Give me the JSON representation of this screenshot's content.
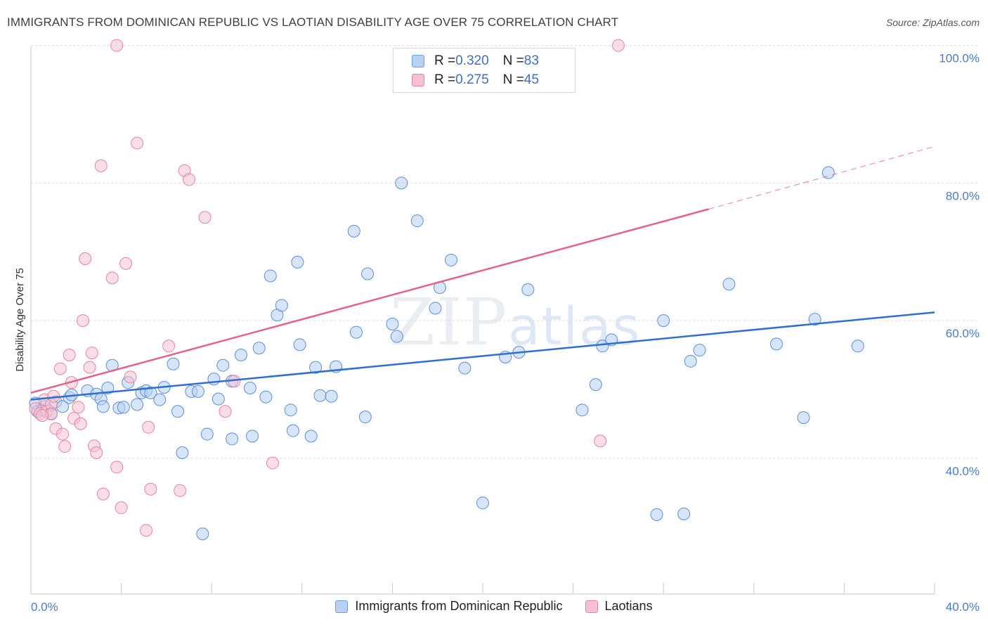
{
  "title": "IMMIGRANTS FROM DOMINICAN REPUBLIC VS LAOTIAN DISABILITY AGE OVER 75 CORRELATION CHART",
  "source": "Source: ZipAtlas.com",
  "watermark": {
    "zip": "ZIP",
    "atlas": "atlas"
  },
  "legend": {
    "rows": [
      {
        "r_label": "R = ",
        "r_value": "0.320",
        "n_label": "N = ",
        "n_value": "83",
        "color": "#6f9de0",
        "fill": "#b7d0f3"
      },
      {
        "r_label": "R = ",
        "r_value": "0.275",
        "n_label": "N = ",
        "n_value": "45",
        "color": "#e8839f",
        "fill": "#f6c2d2"
      }
    ]
  },
  "chart_data": {
    "type": "scatter",
    "title": "IMMIGRANTS FROM DOMINICAN REPUBLIC VS LAOTIAN DISABILITY AGE OVER 75 CORRELATION CHART",
    "xlabel": "",
    "ylabel": "Disability Age Over 75",
    "xlim": [
      0,
      40
    ],
    "ylim": [
      22,
      102
    ],
    "x_tick_labels": [
      "0.0%",
      "40.0%"
    ],
    "y_ticks": [
      40,
      60,
      80,
      100
    ],
    "y_tick_labels": [
      "40.0%",
      "60.0%",
      "80.0%",
      "100.0%"
    ],
    "grid": true,
    "legend_position": "top-center",
    "series": [
      {
        "name": "Immigrants from Dominican Republic",
        "color": "#5b8fdc",
        "fill": "#b7d0f3",
        "trend": {
          "x": [
            0,
            40
          ],
          "y": [
            48.5,
            61.2
          ],
          "color": "#2f6fcf"
        },
        "points": [
          [
            0.2,
            48.0
          ],
          [
            0.3,
            46.8
          ],
          [
            0.5,
            47.0
          ],
          [
            0.6,
            47.5
          ],
          [
            0.9,
            46.5
          ],
          [
            1.1,
            48.2
          ],
          [
            1.4,
            47.5
          ],
          [
            1.7,
            48.8
          ],
          [
            1.8,
            49.2
          ],
          [
            2.5,
            49.8
          ],
          [
            2.9,
            49.3
          ],
          [
            3.1,
            48.6
          ],
          [
            3.2,
            47.5
          ],
          [
            3.4,
            50.2
          ],
          [
            3.6,
            53.5
          ],
          [
            3.9,
            47.3
          ],
          [
            4.1,
            47.4
          ],
          [
            4.3,
            51.0
          ],
          [
            4.7,
            47.8
          ],
          [
            4.9,
            49.5
          ],
          [
            5.1,
            49.8
          ],
          [
            5.3,
            49.5
          ],
          [
            5.7,
            48.5
          ],
          [
            5.9,
            50.3
          ],
          [
            6.3,
            53.7
          ],
          [
            6.5,
            46.8
          ],
          [
            6.7,
            40.8
          ],
          [
            7.1,
            49.7
          ],
          [
            7.4,
            49.7
          ],
          [
            7.6,
            29.0
          ],
          [
            7.8,
            43.5
          ],
          [
            8.1,
            51.5
          ],
          [
            8.3,
            48.6
          ],
          [
            8.5,
            53.5
          ],
          [
            8.9,
            51.2
          ],
          [
            8.9,
            42.8
          ],
          [
            9.3,
            55.0
          ],
          [
            9.7,
            50.2
          ],
          [
            9.8,
            43.2
          ],
          [
            10.1,
            56.0
          ],
          [
            10.4,
            48.9
          ],
          [
            10.6,
            66.5
          ],
          [
            10.9,
            60.8
          ],
          [
            11.1,
            62.2
          ],
          [
            11.5,
            47.0
          ],
          [
            11.6,
            44.0
          ],
          [
            11.8,
            68.5
          ],
          [
            11.9,
            56.5
          ],
          [
            12.4,
            43.2
          ],
          [
            12.6,
            53.2
          ],
          [
            12.8,
            49.1
          ],
          [
            13.3,
            49.0
          ],
          [
            13.5,
            53.3
          ],
          [
            14.3,
            73.0
          ],
          [
            14.4,
            58.3
          ],
          [
            14.8,
            46.0
          ],
          [
            14.9,
            66.8
          ],
          [
            16.0,
            59.5
          ],
          [
            16.2,
            57.7
          ],
          [
            16.4,
            80.0
          ],
          [
            17.1,
            74.5
          ],
          [
            17.9,
            61.8
          ],
          [
            18.1,
            64.8
          ],
          [
            18.6,
            68.8
          ],
          [
            19.2,
            53.1
          ],
          [
            20.0,
            33.5
          ],
          [
            21.0,
            54.7
          ],
          [
            21.6,
            55.4
          ],
          [
            22.0,
            64.5
          ],
          [
            24.4,
            47.0
          ],
          [
            25.0,
            50.7
          ],
          [
            25.3,
            56.3
          ],
          [
            25.7,
            57.2
          ],
          [
            27.7,
            31.8
          ],
          [
            28.0,
            60.0
          ],
          [
            28.9,
            31.9
          ],
          [
            29.2,
            54.1
          ],
          [
            29.6,
            55.7
          ],
          [
            30.9,
            65.3
          ],
          [
            33.0,
            56.6
          ],
          [
            34.2,
            45.9
          ],
          [
            34.7,
            60.2
          ],
          [
            35.3,
            81.5
          ],
          [
            36.6,
            56.3
          ]
        ]
      },
      {
        "name": "Laotians",
        "color": "#e8839f",
        "fill": "#f6c2d2",
        "trend": {
          "x": [
            0,
            30
          ],
          "y": [
            49.5,
            76.2
          ],
          "color": "#e0648c",
          "dash_to": [
            40,
            85.3
          ]
        },
        "points": [
          [
            0.2,
            47.2
          ],
          [
            0.4,
            46.5
          ],
          [
            0.6,
            48.5
          ],
          [
            0.7,
            46.8
          ],
          [
            0.9,
            47.8
          ],
          [
            1.0,
            49.0
          ],
          [
            1.1,
            44.3
          ],
          [
            1.3,
            53.0
          ],
          [
            1.4,
            43.5
          ],
          [
            1.5,
            41.7
          ],
          [
            1.7,
            55.0
          ],
          [
            1.8,
            51.0
          ],
          [
            1.9,
            45.8
          ],
          [
            2.1,
            47.4
          ],
          [
            2.2,
            45.0
          ],
          [
            2.3,
            60.0
          ],
          [
            2.4,
            69.0
          ],
          [
            2.6,
            53.2
          ],
          [
            2.7,
            55.3
          ],
          [
            2.8,
            41.8
          ],
          [
            2.9,
            40.8
          ],
          [
            3.1,
            82.5
          ],
          [
            3.2,
            34.8
          ],
          [
            3.6,
            66.2
          ],
          [
            3.8,
            38.7
          ],
          [
            3.8,
            100.0
          ],
          [
            4.0,
            32.8
          ],
          [
            4.2,
            68.3
          ],
          [
            4.4,
            51.8
          ],
          [
            4.7,
            85.8
          ],
          [
            5.1,
            29.5
          ],
          [
            5.2,
            44.5
          ],
          [
            5.3,
            35.5
          ],
          [
            6.1,
            56.3
          ],
          [
            6.6,
            35.3
          ],
          [
            6.8,
            81.8
          ],
          [
            7.0,
            80.5
          ],
          [
            7.7,
            75.0
          ],
          [
            8.6,
            46.8
          ],
          [
            9.0,
            51.2
          ],
          [
            10.7,
            39.3
          ],
          [
            25.2,
            42.5
          ],
          [
            26.0,
            100.0
          ],
          [
            0.9,
            46.4
          ],
          [
            0.5,
            46.2
          ]
        ]
      }
    ]
  },
  "bottom_legend": [
    {
      "label": "Immigrants from Dominican Republic",
      "color": "#6f9de0",
      "fill": "#b7d0f3"
    },
    {
      "label": "Laotians",
      "color": "#e8839f",
      "fill": "#f6c2d2"
    }
  ]
}
